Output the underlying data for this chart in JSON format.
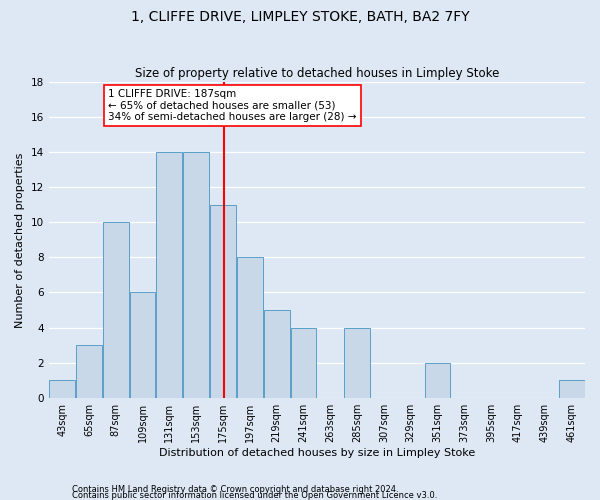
{
  "title1": "1, CLIFFE DRIVE, LIMPLEY STOKE, BATH, BA2 7FY",
  "title2": "Size of property relative to detached houses in Limpley Stoke",
  "xlabel": "Distribution of detached houses by size in Limpley Stoke",
  "ylabel": "Number of detached properties",
  "annotation_line1": "1 CLIFFE DRIVE: 187sqm",
  "annotation_line2": "← 65% of detached houses are smaller (53)",
  "annotation_line3": "34% of semi-detached houses are larger (28) →",
  "footer1": "Contains HM Land Registry data © Crown copyright and database right 2024.",
  "footer2": "Contains public sector information licensed under the Open Government Licence v3.0.",
  "bar_color": "#c8d8e8",
  "bar_edge_color": "#5a9fc8",
  "reference_line_x": 187,
  "bins": [
    43,
    65,
    87,
    109,
    131,
    153,
    175,
    197,
    219,
    241,
    263,
    285,
    307,
    329,
    351,
    373,
    395,
    417,
    439,
    461,
    483
  ],
  "counts": [
    1,
    3,
    10,
    6,
    14,
    14,
    11,
    8,
    5,
    4,
    0,
    4,
    0,
    0,
    2,
    0,
    0,
    0,
    0,
    1
  ],
  "ylim": [
    0,
    18
  ],
  "yticks": [
    0,
    2,
    4,
    6,
    8,
    10,
    12,
    14,
    16,
    18
  ],
  "background_color": "#dde8f4",
  "grid_color": "#ffffff",
  "fig_background": "#dde8f4",
  "title_fontsize": 10,
  "subtitle_fontsize": 8.5,
  "tick_fontsize": 7,
  "ylabel_fontsize": 8,
  "xlabel_fontsize": 8,
  "annotation_fontsize": 7.5
}
